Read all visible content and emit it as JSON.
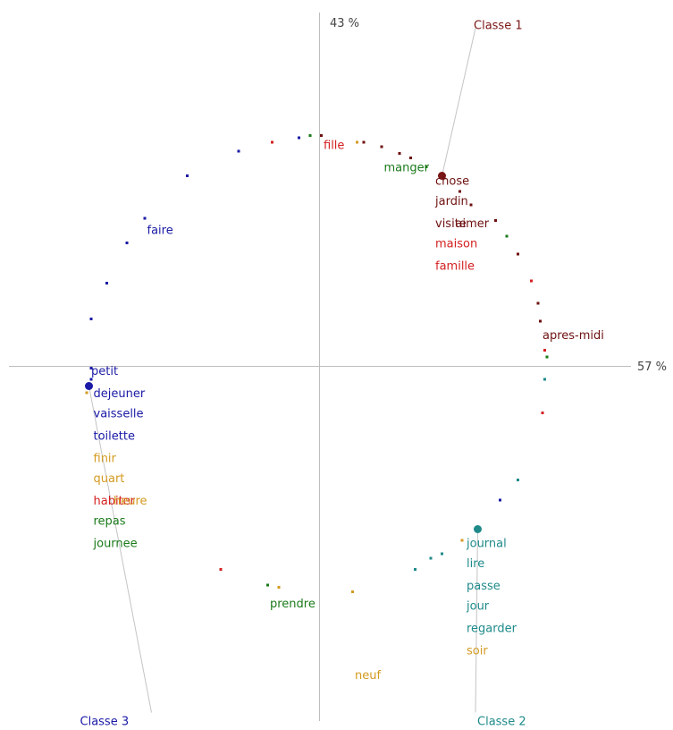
{
  "chart_data": {
    "type": "scatter",
    "title": "",
    "axes": {
      "x_label": "57 %",
      "y_label": "43 %",
      "xlim": [
        -1.2,
        1.28
      ],
      "ylim": [
        -1.61,
        1.59
      ],
      "grid": false
    },
    "classes": [
      {
        "name": "Classe 1",
        "color": "#7a1616",
        "centroid": [
          0.55,
          0.85
        ],
        "label_anchor": [
          0.7,
          1.51
        ]
      },
      {
        "name": "Classe 2",
        "color": "#1f8a8a",
        "centroid": [
          0.71,
          -0.73
        ],
        "label_anchor": [
          0.7,
          -1.55
        ]
      },
      {
        "name": "Classe 3",
        "color": "#1a1aa6",
        "centroid": [
          -1.03,
          -0.09
        ],
        "label_anchor": [
          -0.75,
          -1.55
        ]
      }
    ],
    "word_colors": {
      "class1": "#6e1010",
      "red": "#d42020",
      "green": "#1a7a1a",
      "blue": "#1a1aa6",
      "teal": "#1f8a8a",
      "orange": "#d49a20"
    },
    "words": [
      {
        "text": "fille",
        "x": 0.02,
        "y": 0.97,
        "color_key": "red"
      },
      {
        "text": "manger",
        "x": 0.29,
        "y": 0.87,
        "color_key": "green"
      },
      {
        "text": "chose",
        "x": 0.52,
        "y": 0.81,
        "color_key": "class1"
      },
      {
        "text": "jardin",
        "x": 0.52,
        "y": 0.72,
        "color_key": "class1"
      },
      {
        "text": "visite",
        "x": 0.52,
        "y": 0.62,
        "color_key": "class1"
      },
      {
        "text": "aimer",
        "x": 0.61,
        "y": 0.62,
        "color_key": "class1"
      },
      {
        "text": "maison",
        "x": 0.52,
        "y": 0.53,
        "color_key": "red"
      },
      {
        "text": "famille",
        "x": 0.52,
        "y": 0.43,
        "color_key": "red"
      },
      {
        "text": "apres-midi",
        "x": 1.0,
        "y": 0.12,
        "color_key": "class1"
      },
      {
        "text": "faire",
        "x": -0.77,
        "y": 0.59,
        "color_key": "blue"
      },
      {
        "text": "petit",
        "x": -1.02,
        "y": -0.04,
        "color_key": "blue"
      },
      {
        "text": "dejeuner",
        "x": -1.01,
        "y": -0.14,
        "color_key": "blue"
      },
      {
        "text": "vaisselle",
        "x": -1.01,
        "y": -0.23,
        "color_key": "blue"
      },
      {
        "text": "toilette",
        "x": -1.01,
        "y": -0.33,
        "color_key": "blue"
      },
      {
        "text": "finir",
        "x": -1.01,
        "y": -0.43,
        "color_key": "orange"
      },
      {
        "text": "quart",
        "x": -1.01,
        "y": -0.52,
        "color_key": "orange"
      },
      {
        "text": "habiter",
        "x": -1.01,
        "y": -0.62,
        "color_key": "red"
      },
      {
        "text": "heure",
        "x": -0.92,
        "y": -0.62,
        "color_key": "orange"
      },
      {
        "text": "repas",
        "x": -1.01,
        "y": -0.71,
        "color_key": "green"
      },
      {
        "text": "journee",
        "x": -1.01,
        "y": -0.81,
        "color_key": "green"
      },
      {
        "text": "prendre",
        "x": -0.22,
        "y": -1.08,
        "color_key": "green"
      },
      {
        "text": "neuf",
        "x": 0.16,
        "y": -1.4,
        "color_key": "orange"
      },
      {
        "text": "journal",
        "x": 0.66,
        "y": -0.81,
        "color_key": "teal"
      },
      {
        "text": "lire",
        "x": 0.66,
        "y": -0.9,
        "color_key": "teal"
      },
      {
        "text": "passe",
        "x": 0.66,
        "y": -1.0,
        "color_key": "teal"
      },
      {
        "text": "jour",
        "x": 0.66,
        "y": -1.09,
        "color_key": "teal"
      },
      {
        "text": "regarder",
        "x": 0.66,
        "y": -1.19,
        "color_key": "teal"
      },
      {
        "text": "soir",
        "x": 0.66,
        "y": -1.29,
        "color_key": "orange"
      }
    ],
    "points": [
      {
        "x": -1.02,
        "y": -0.01,
        "color_key": "blue"
      },
      {
        "x": -1.02,
        "y": 0.21,
        "color_key": "blue"
      },
      {
        "x": -0.95,
        "y": 0.37,
        "color_key": "blue"
      },
      {
        "x": -0.86,
        "y": 0.55,
        "color_key": "blue"
      },
      {
        "x": -0.78,
        "y": 0.66,
        "color_key": "blue"
      },
      {
        "x": -0.59,
        "y": 0.85,
        "color_key": "blue"
      },
      {
        "x": -0.36,
        "y": 0.96,
        "color_key": "blue"
      },
      {
        "x": -0.21,
        "y": 1.0,
        "color_key": "red"
      },
      {
        "x": -0.09,
        "y": 1.02,
        "color_key": "blue"
      },
      {
        "x": -0.04,
        "y": 1.03,
        "color_key": "green"
      },
      {
        "x": 0.01,
        "y": 1.03,
        "color_key": "class1"
      },
      {
        "x": 0.17,
        "y": 1.0,
        "color_key": "orange"
      },
      {
        "x": 0.2,
        "y": 1.0,
        "color_key": "class1"
      },
      {
        "x": 0.28,
        "y": 0.98,
        "color_key": "class1"
      },
      {
        "x": 0.36,
        "y": 0.95,
        "color_key": "class1"
      },
      {
        "x": 0.41,
        "y": 0.93,
        "color_key": "class1"
      },
      {
        "x": 0.48,
        "y": 0.89,
        "color_key": "green"
      },
      {
        "x": 0.56,
        "y": 0.84,
        "color_key": "class1"
      },
      {
        "x": 0.63,
        "y": 0.78,
        "color_key": "class1"
      },
      {
        "x": 0.68,
        "y": 0.72,
        "color_key": "class1"
      },
      {
        "x": 0.79,
        "y": 0.65,
        "color_key": "class1"
      },
      {
        "x": 0.84,
        "y": 0.58,
        "color_key": "green"
      },
      {
        "x": 0.89,
        "y": 0.5,
        "color_key": "class1"
      },
      {
        "x": 0.95,
        "y": 0.38,
        "color_key": "red"
      },
      {
        "x": 0.98,
        "y": 0.28,
        "color_key": "class1"
      },
      {
        "x": 0.99,
        "y": 0.2,
        "color_key": "class1"
      },
      {
        "x": 1.01,
        "y": 0.07,
        "color_key": "red"
      },
      {
        "x": 1.02,
        "y": 0.04,
        "color_key": "green"
      },
      {
        "x": 1.01,
        "y": -0.06,
        "color_key": "teal"
      },
      {
        "x": 1.0,
        "y": -0.21,
        "color_key": "red"
      },
      {
        "x": 0.89,
        "y": -0.51,
        "color_key": "teal"
      },
      {
        "x": 0.81,
        "y": -0.6,
        "color_key": "blue"
      },
      {
        "x": 0.64,
        "y": -0.78,
        "color_key": "orange"
      },
      {
        "x": 0.55,
        "y": -0.84,
        "color_key": "teal"
      },
      {
        "x": 0.5,
        "y": -0.86,
        "color_key": "teal"
      },
      {
        "x": 0.43,
        "y": -0.91,
        "color_key": "teal"
      },
      {
        "x": 0.15,
        "y": -1.01,
        "color_key": "orange"
      },
      {
        "x": -0.18,
        "y": -0.99,
        "color_key": "orange"
      },
      {
        "x": -0.23,
        "y": -0.98,
        "color_key": "green"
      },
      {
        "x": -0.44,
        "y": -0.91,
        "color_key": "red"
      },
      {
        "x": -1.04,
        "y": -0.12,
        "color_key": "orange"
      },
      {
        "x": -1.02,
        "y": -0.06,
        "color_key": "blue"
      }
    ]
  }
}
